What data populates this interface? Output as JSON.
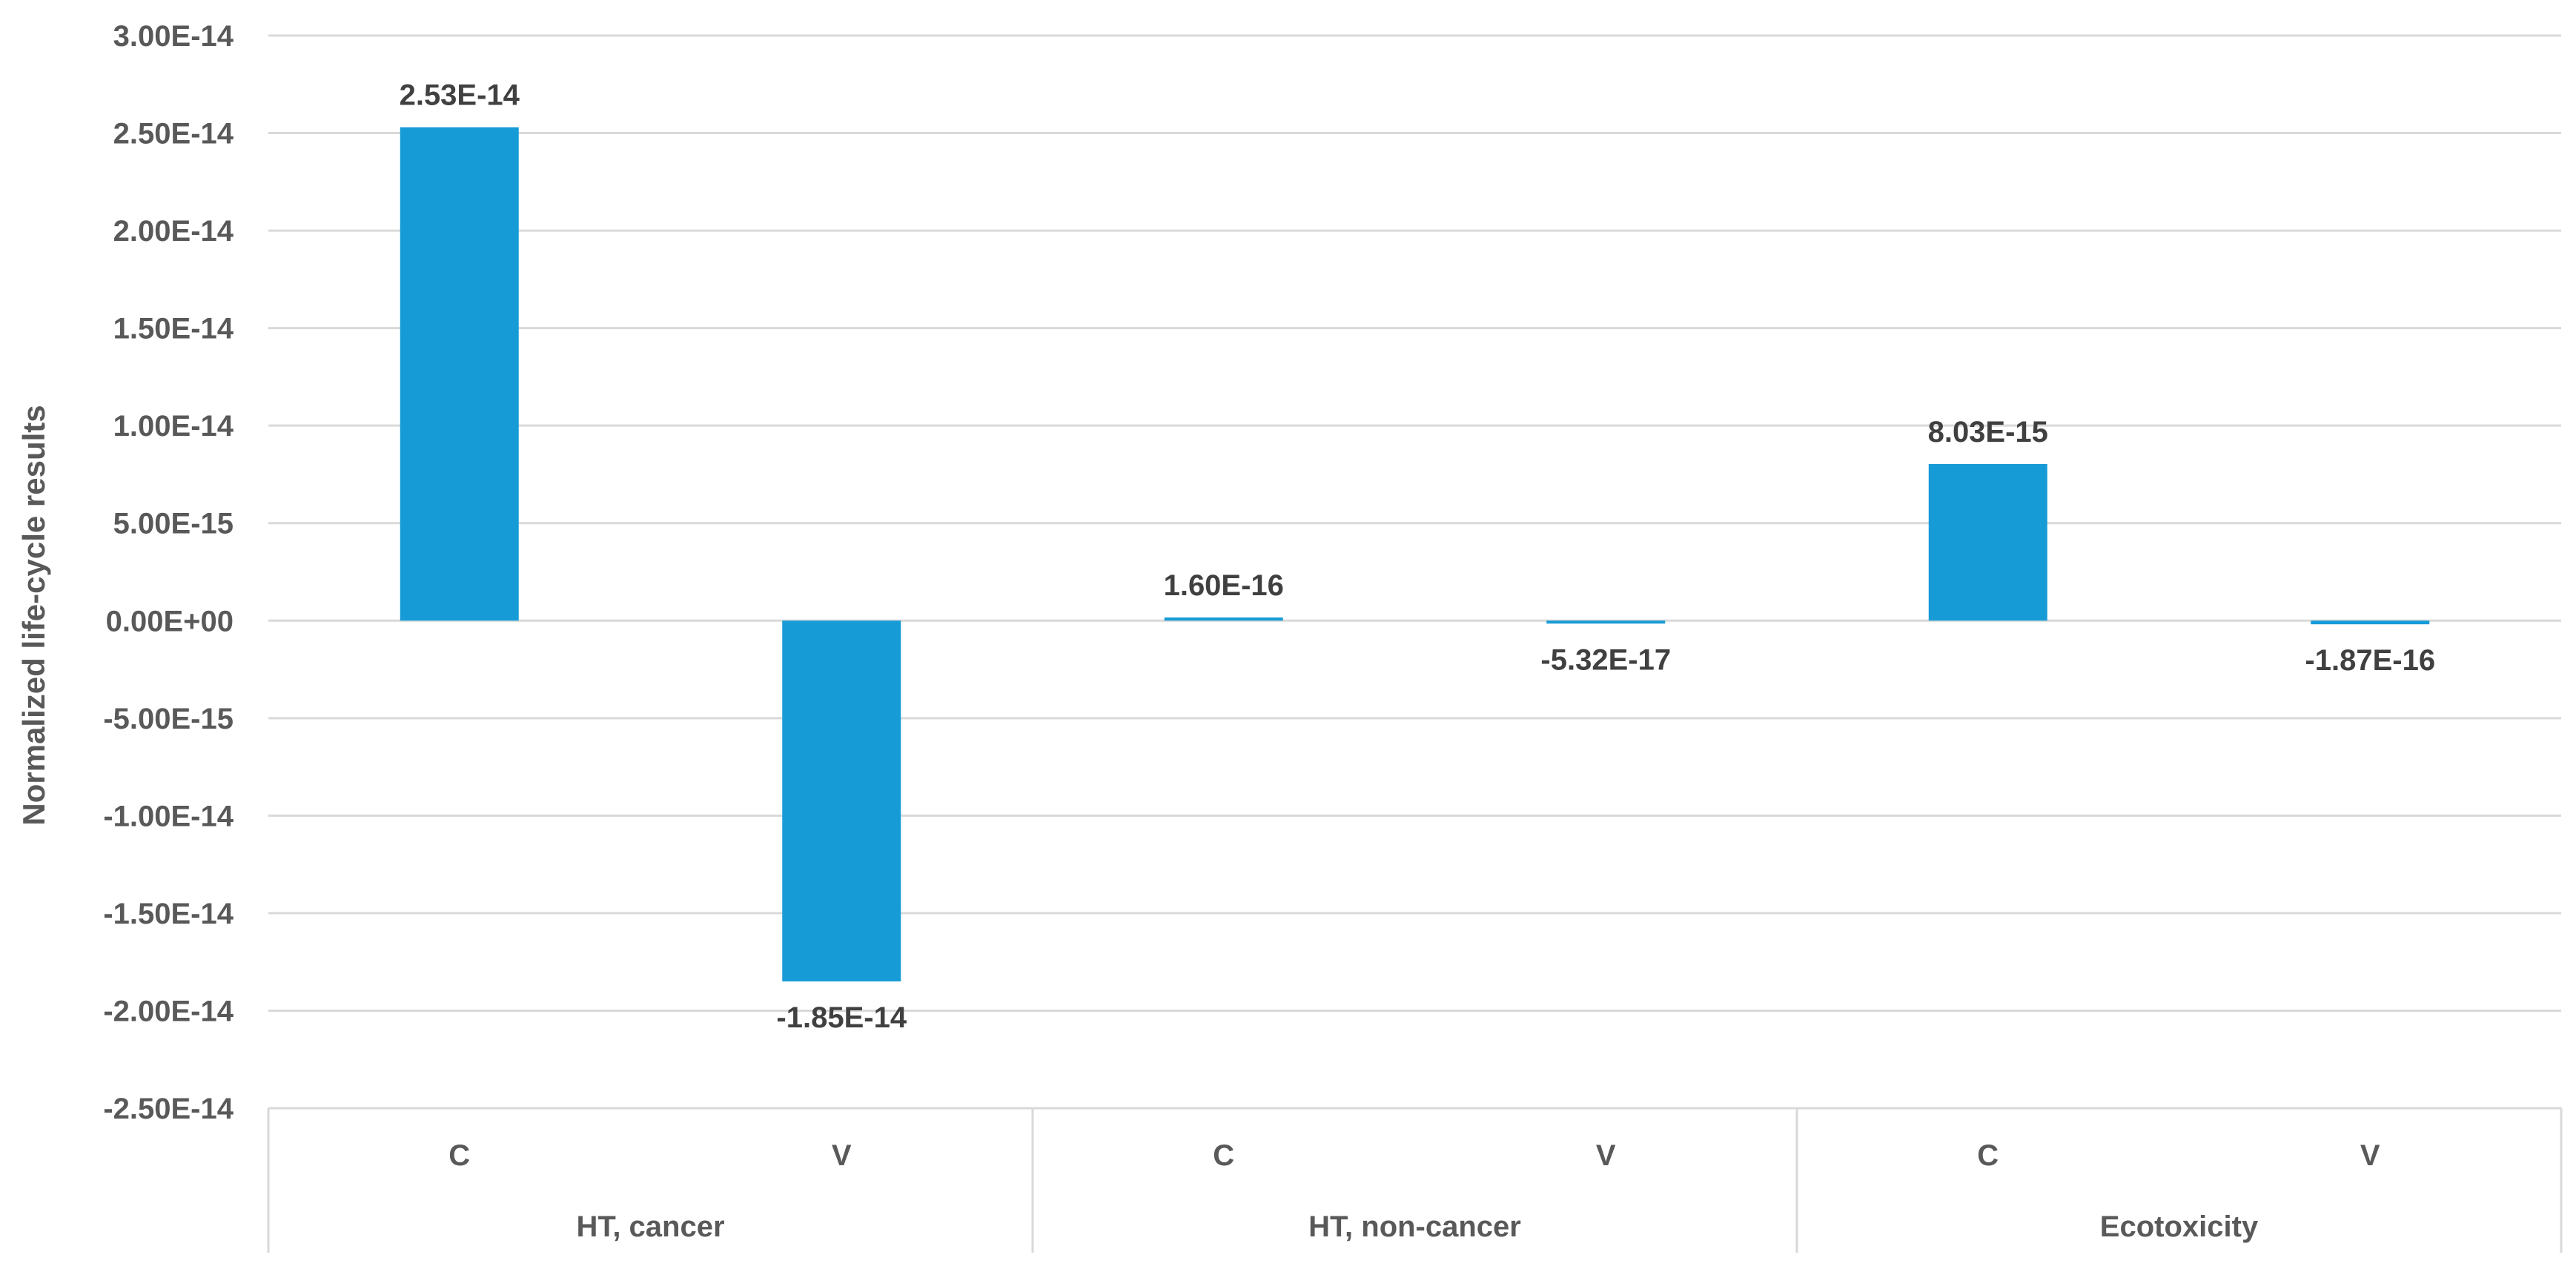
{
  "chart_data": {
    "type": "bar",
    "ylabel": "Normalized life-cycle results",
    "xlabel": "",
    "ylim": [
      -2.5e-14,
      3e-14
    ],
    "y_tick_step": 5e-15,
    "y_ticks": [
      "3.00E-14",
      "2.50E-14",
      "2.00E-14",
      "1.50E-14",
      "1.00E-14",
      "5.00E-15",
      "0.00E+00",
      "-5.00E-15",
      "-1.00E-14",
      "-1.50E-14",
      "-2.00E-14",
      "-2.50E-14"
    ],
    "groups": [
      "HT, cancer",
      "HT, non-cancer",
      "Ecotoxicity"
    ],
    "categories": [
      "C",
      "V",
      "C",
      "V",
      "C",
      "V"
    ],
    "values": [
      2.53e-14,
      -1.85e-14,
      1.6e-16,
      -5.32e-17,
      8.03e-15,
      -1.87e-16
    ],
    "value_labels": [
      "2.53E-14",
      "-1.85E-14",
      "1.60E-16",
      "-5.32E-17",
      "8.03E-15",
      "-1.87E-16"
    ],
    "bar_color": "#179bd7",
    "grid": true,
    "legend": "none"
  }
}
